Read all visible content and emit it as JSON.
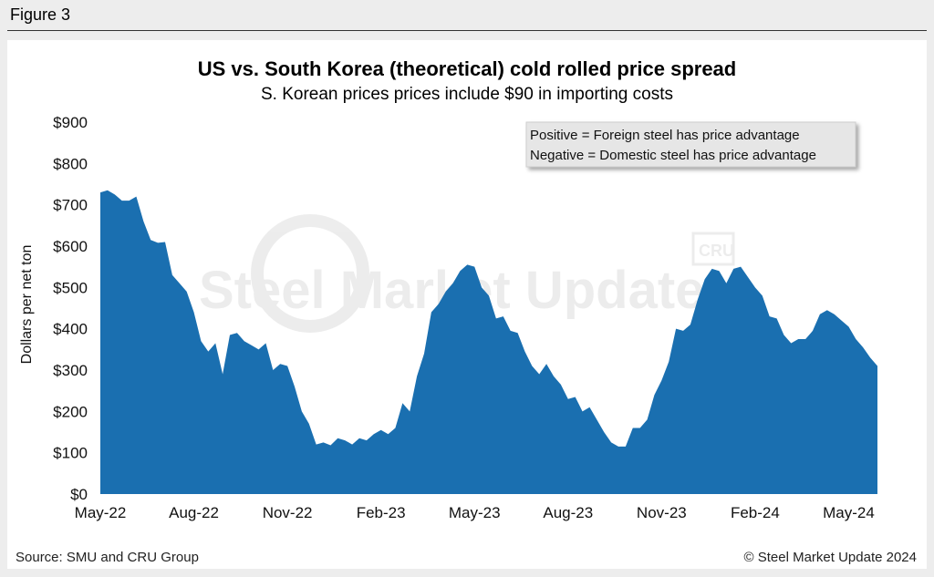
{
  "figure_label": "Figure 3",
  "watermark": {
    "brand": "Steel Market Update",
    "logo": "CRU"
  },
  "footer": {
    "source": "Source: SMU and CRU Group",
    "copyright": "© Steel Market Update 2024"
  },
  "chart_data": {
    "type": "area",
    "title": "US vs. South Korea (theoretical) cold rolled price spread",
    "subtitle": "S. Korean prices prices include $90 in importing costs",
    "ylabel": "Dollars per net ton",
    "xlabel": "",
    "ylim": [
      0,
      900
    ],
    "yticks": [
      0,
      100,
      200,
      300,
      400,
      500,
      600,
      700,
      800,
      900
    ],
    "ytick_labels": [
      "$0",
      "$100",
      "$200",
      "$300",
      "$400",
      "$500",
      "$600",
      "$700",
      "$800",
      "$900"
    ],
    "xtick_labels": [
      "May-22",
      "Aug-22",
      "Nov-22",
      "Feb-23",
      "May-23",
      "Aug-23",
      "Nov-23",
      "Feb-24",
      "May-24"
    ],
    "x_start": "May-22",
    "x_end": "Jun-24",
    "legend_note": [
      "Positive = Foreign steel has price advantage",
      "Negative = Domestic steel has price advantage"
    ],
    "legend_position": "top-right",
    "grid": false,
    "color": "#1a6fb0",
    "series": [
      {
        "values": [
          730,
          735,
          725,
          710,
          710,
          720,
          660,
          615,
          608,
          610,
          530,
          510,
          490,
          440,
          370,
          345,
          365,
          290,
          385,
          390,
          370,
          360,
          350,
          365,
          300,
          315,
          310,
          260,
          200,
          170,
          120,
          125,
          118,
          135,
          130,
          120,
          135,
          130,
          145,
          155,
          145,
          160,
          220,
          200,
          285,
          340,
          440,
          460,
          490,
          510,
          540,
          555,
          550,
          500,
          480,
          425,
          430,
          395,
          390,
          345,
          310,
          290,
          315,
          285,
          265,
          230,
          235,
          200,
          210,
          180,
          150,
          125,
          115,
          115,
          160,
          160,
          180,
          240,
          275,
          320,
          400,
          395,
          410,
          470,
          520,
          545,
          540,
          510,
          545,
          550,
          525,
          500,
          480,
          430,
          425,
          385,
          365,
          375,
          375,
          395,
          435,
          445,
          435,
          420,
          405,
          375,
          355,
          330,
          310
        ]
      }
    ]
  }
}
